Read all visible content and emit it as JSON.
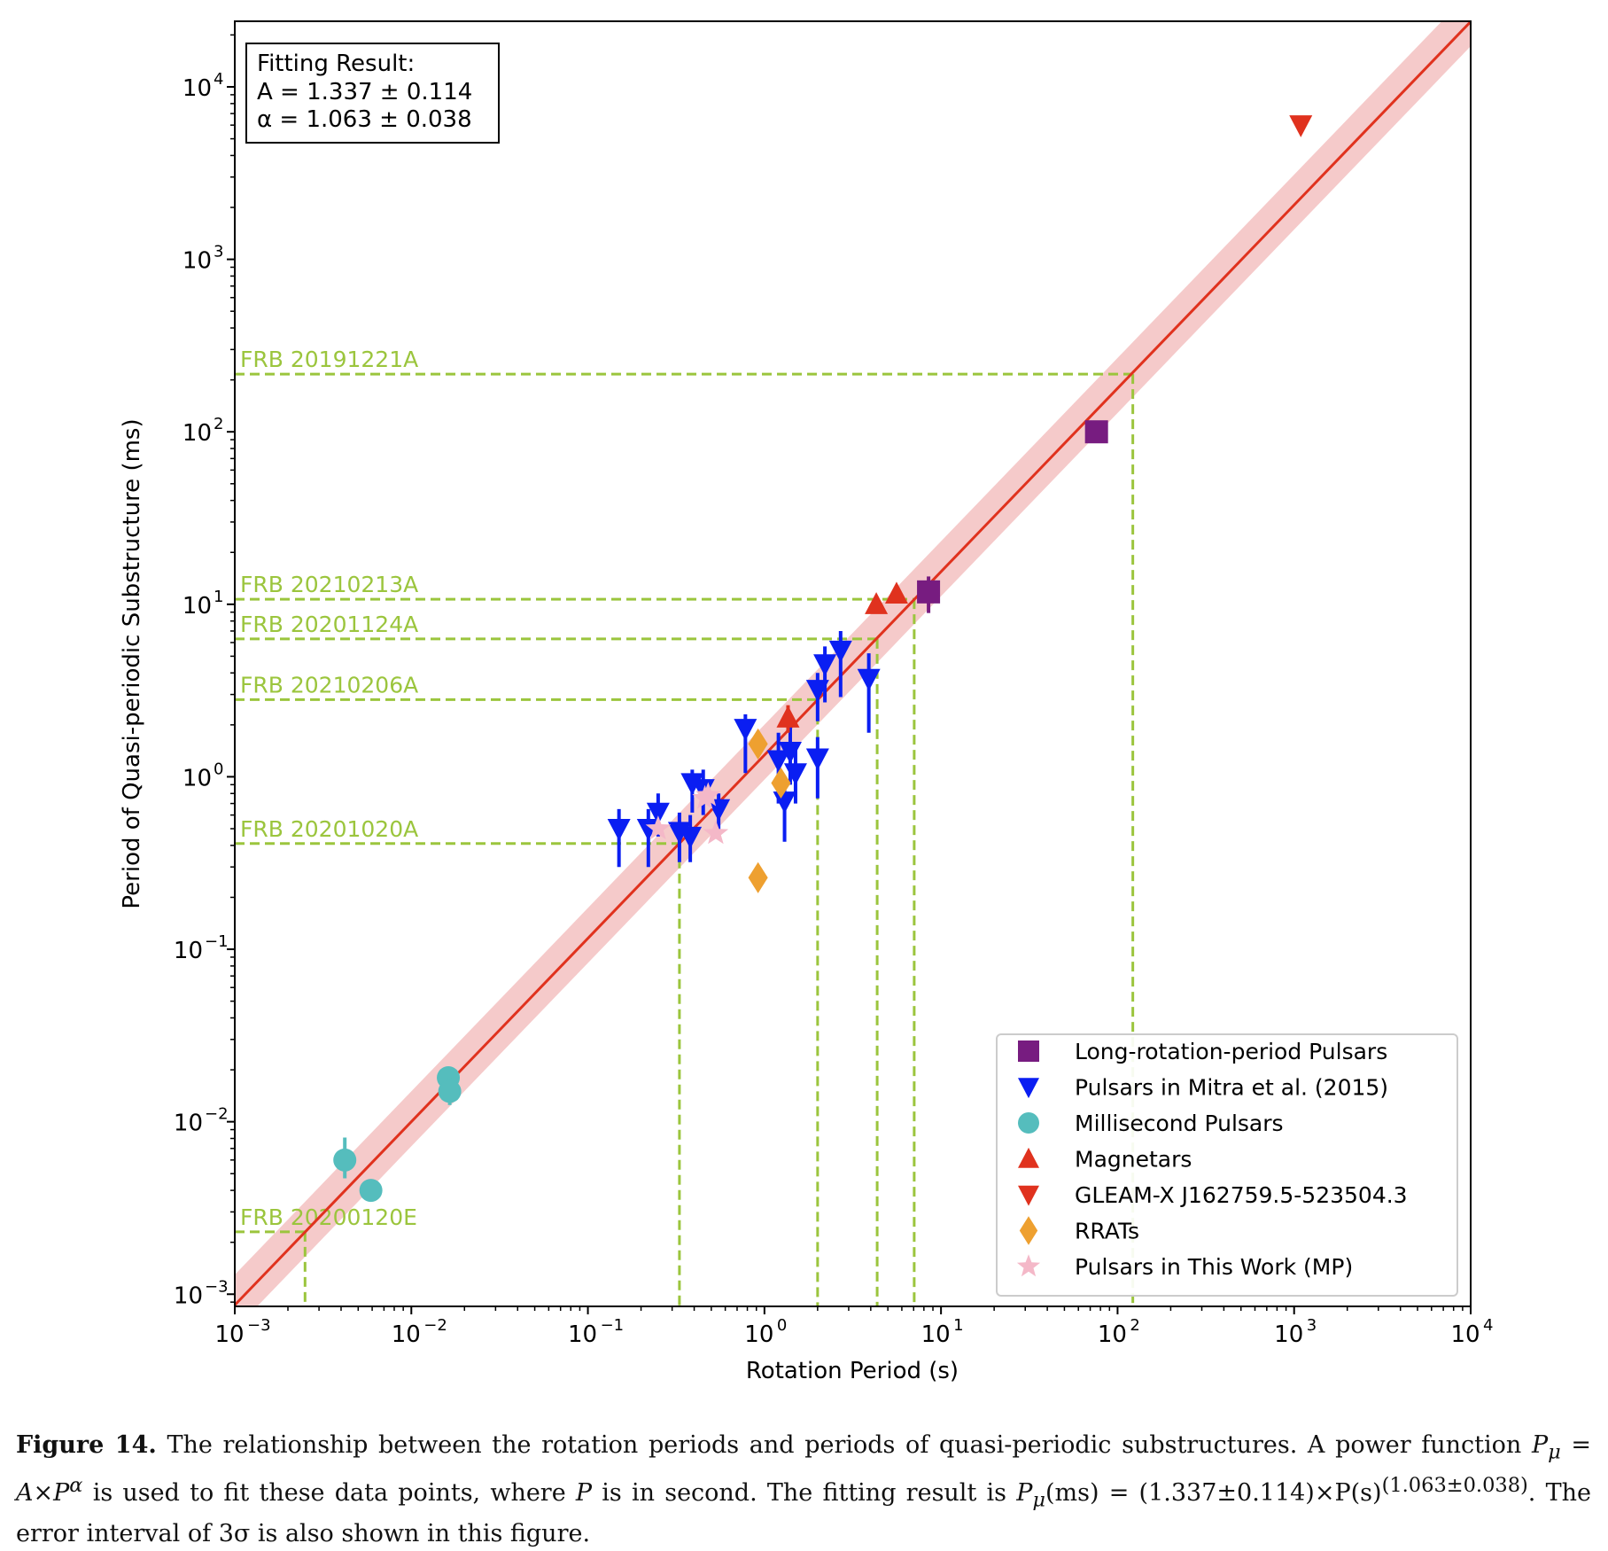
{
  "chart_data": {
    "type": "scatter",
    "xscale": "log",
    "yscale": "log",
    "xlim": [
      0.001,
      10000
    ],
    "ylim": [
      0.00085,
      24000
    ],
    "xlabel": "Rotation Period (s)",
    "ylabel": "Period of Quasi-periodic Substructure (ms)",
    "x_ticks": [
      {
        "value": 0.001,
        "base": "10",
        "exp": "−3"
      },
      {
        "value": 0.01,
        "base": "10",
        "exp": "−2"
      },
      {
        "value": 0.1,
        "base": "10",
        "exp": "−1"
      },
      {
        "value": 1,
        "base": "10",
        "exp": "0"
      },
      {
        "value": 10,
        "base": "10",
        "exp": "1"
      },
      {
        "value": 100,
        "base": "10",
        "exp": "2"
      },
      {
        "value": 1000,
        "base": "10",
        "exp": "3"
      },
      {
        "value": 10000,
        "base": "10",
        "exp": "4"
      }
    ],
    "y_ticks": [
      {
        "value": 0.001,
        "base": "10",
        "exp": "−3"
      },
      {
        "value": 0.01,
        "base": "10",
        "exp": "−2"
      },
      {
        "value": 0.1,
        "base": "10",
        "exp": "−1"
      },
      {
        "value": 1,
        "base": "10",
        "exp": "0"
      },
      {
        "value": 10,
        "base": "10",
        "exp": "1"
      },
      {
        "value": 100,
        "base": "10",
        "exp": "2"
      },
      {
        "value": 1000,
        "base": "10",
        "exp": "3"
      },
      {
        "value": 10000,
        "base": "10",
        "exp": "4"
      }
    ],
    "fit": {
      "A": 1.337,
      "alpha": 1.063,
      "band_factor_low": 0.72,
      "band_factor_high": 1.5,
      "color": "#e0321e",
      "band_color": "#f2b8b8"
    },
    "fit_box": {
      "title": "Fitting Result:",
      "line_A": "A = 1.337 ± 0.114",
      "line_alpha": "α = 1.063 ± 0.038"
    },
    "frb_lines": [
      {
        "name": "FRB 20191221A",
        "y": 216,
        "x": 122
      },
      {
        "name": "FRB 20210213A",
        "y": 10.7,
        "x": 7.05
      },
      {
        "name": "FRB 20201124A",
        "y": 6.3,
        "x": 4.35
      },
      {
        "name": "FRB 20210206A",
        "y": 2.8,
        "x": 2.0
      },
      {
        "name": "FRB 20201020A",
        "y": 0.41,
        "x": 0.33
      },
      {
        "name": "FRB 20200120E",
        "y": 0.0023,
        "x": 0.0025
      }
    ],
    "frb_color": "#9bc53d",
    "series": [
      {
        "name": "Long-rotation-period Pulsars",
        "marker": "square",
        "color": "#771c80",
        "points": [
          {
            "x": 76,
            "y": 100,
            "ylo": 100,
            "yhi": 100
          },
          {
            "x": 8.5,
            "y": 11.8,
            "ylo": 8.9,
            "yhi": 14.5
          }
        ]
      },
      {
        "name": "Pulsars in Mitra et al. (2015)",
        "marker": "triangle-down",
        "color": "#0a1ef2",
        "points": [
          {
            "x": 0.15,
            "y": 0.5,
            "ylo": 0.3,
            "yhi": 0.65
          },
          {
            "x": 0.22,
            "y": 0.5,
            "ylo": 0.3,
            "yhi": 0.65
          },
          {
            "x": 0.25,
            "y": 0.62,
            "ylo": 0.45,
            "yhi": 0.8
          },
          {
            "x": 0.33,
            "y": 0.48,
            "ylo": 0.32,
            "yhi": 0.62
          },
          {
            "x": 0.38,
            "y": 0.45,
            "ylo": 0.32,
            "yhi": 0.6
          },
          {
            "x": 0.39,
            "y": 0.92,
            "ylo": 0.62,
            "yhi": 1.1
          },
          {
            "x": 0.45,
            "y": 0.85,
            "ylo": 0.6,
            "yhi": 1.1
          },
          {
            "x": 0.55,
            "y": 0.65,
            "ylo": 0.45,
            "yhi": 0.8
          },
          {
            "x": 0.78,
            "y": 1.9,
            "ylo": 1.05,
            "yhi": 2.3
          },
          {
            "x": 1.2,
            "y": 1.25,
            "ylo": 0.7,
            "yhi": 1.8
          },
          {
            "x": 1.3,
            "y": 0.72,
            "ylo": 0.42,
            "yhi": 1.0
          },
          {
            "x": 1.4,
            "y": 1.4,
            "ylo": 0.9,
            "yhi": 2.1
          },
          {
            "x": 1.5,
            "y": 1.05,
            "ylo": 0.7,
            "yhi": 1.5
          },
          {
            "x": 2.0,
            "y": 1.28,
            "ylo": 0.75,
            "yhi": 1.7
          },
          {
            "x": 2.0,
            "y": 3.2,
            "ylo": 2.1,
            "yhi": 4.0
          },
          {
            "x": 2.2,
            "y": 4.5,
            "ylo": 2.7,
            "yhi": 5.7
          },
          {
            "x": 2.7,
            "y": 5.4,
            "ylo": 2.9,
            "yhi": 7.0
          },
          {
            "x": 3.9,
            "y": 3.7,
            "ylo": 1.8,
            "yhi": 5.2
          }
        ]
      },
      {
        "name": "Millisecond Pulsars",
        "marker": "circle",
        "color": "#55bdbd",
        "points": [
          {
            "x": 0.0042,
            "y": 0.006,
            "ylo": 0.0047,
            "yhi": 0.0081
          },
          {
            "x": 0.0059,
            "y": 0.004,
            "ylo": 0.0036,
            "yhi": 0.0044
          },
          {
            "x": 0.0162,
            "y": 0.018,
            "ylo": 0.015,
            "yhi": 0.02
          },
          {
            "x": 0.0165,
            "y": 0.015,
            "ylo": 0.0125,
            "yhi": 0.018
          }
        ]
      },
      {
        "name": "Magnetars",
        "marker": "triangle-up",
        "color": "#e0321e",
        "points": [
          {
            "x": 4.3,
            "y": 10.0,
            "ylo": 10.0,
            "yhi": 10.0
          },
          {
            "x": 5.6,
            "y": 11.5,
            "ylo": 11.5,
            "yhi": 11.5
          },
          {
            "x": 1.36,
            "y": 2.2,
            "ylo": 1.8,
            "yhi": 2.6
          }
        ]
      },
      {
        "name": "GLEAM-X J162759.5-523504.3",
        "marker": "triangle-down",
        "color": "#e0321e",
        "points": [
          {
            "x": 1091,
            "y": 6000,
            "ylo": 6000,
            "yhi": 6000
          }
        ]
      },
      {
        "name": "RRATs",
        "marker": "diamond",
        "color": "#eea030",
        "points": [
          {
            "x": 0.92,
            "y": 1.55,
            "ylo": 1.55,
            "yhi": 1.55
          },
          {
            "x": 1.24,
            "y": 0.92,
            "ylo": 0.92,
            "yhi": 0.92
          },
          {
            "x": 0.92,
            "y": 0.26,
            "ylo": 0.26,
            "yhi": 0.26
          }
        ]
      },
      {
        "name": "Pulsars in This Work (MP)",
        "marker": "star",
        "color": "#f4b8c8",
        "points": [
          {
            "x": 0.25,
            "y": 0.5,
            "ylo": 0.5,
            "yhi": 0.5
          },
          {
            "x": 0.46,
            "y": 0.75,
            "ylo": 0.75,
            "yhi": 0.75
          },
          {
            "x": 0.48,
            "y": 0.78,
            "ylo": 0.78,
            "yhi": 0.78
          },
          {
            "x": 0.53,
            "y": 0.47,
            "ylo": 0.47,
            "yhi": 0.47
          }
        ]
      }
    ]
  },
  "caption": {
    "label": "Figure 14.",
    "text1": "The relationship between the rotation periods and periods of quasi-periodic substructures. A power function",
    "text2_math": "P",
    "text2_sub": "μ",
    "text2_a": " = A×P",
    "text2_sup": "α",
    "text2_b": " is used to fit these data points, where ",
    "text2_c": "P",
    "text2_d": " is in second. The fitting result is ",
    "text2_e": "P",
    "text2_e_sub": "μ",
    "text2_f": "(ms) = (1.337±0.114)×P(s)",
    "text2_f_sup": "(1.063±0.038)",
    "text2_g": ".",
    "text3": "The error interval of 3σ is also shown in this figure."
  }
}
